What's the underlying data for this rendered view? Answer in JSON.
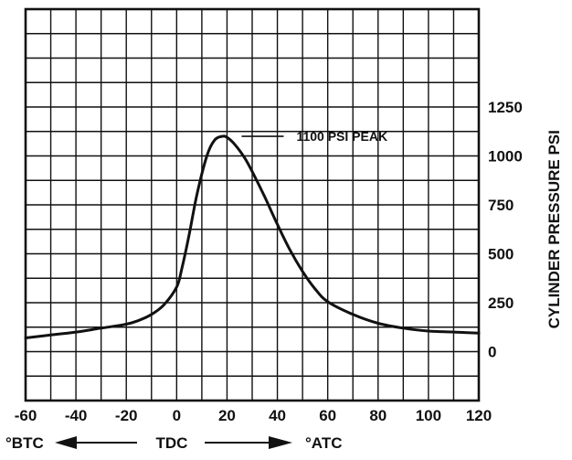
{
  "chart_data": {
    "type": "line",
    "title": "",
    "xlabel": "",
    "ylabel": "CYLINDER PRESSURE PSI",
    "x_ticks": [
      -60,
      -40,
      -20,
      0,
      20,
      40,
      60,
      80,
      100,
      120
    ],
    "x_tick_labels": [
      "-60",
      "-40",
      "-20",
      "0",
      "20",
      "40",
      "60",
      "80",
      "100",
      "120"
    ],
    "y_ticks": [
      0,
      250,
      500,
      750,
      1000,
      1250
    ],
    "y_tick_labels": [
      "0",
      "250",
      "500",
      "750",
      "1000",
      "1250"
    ],
    "xlim": [
      -60,
      120
    ],
    "ylim": [
      -250,
      1750
    ],
    "grid": true,
    "series": [
      {
        "x": [
          -60,
          -50,
          -40,
          -30,
          -20,
          -15,
          -10,
          -5,
          0,
          2,
          5,
          8,
          12,
          15,
          18,
          20,
          23,
          27,
          30,
          35,
          40,
          45,
          50,
          55,
          60,
          70,
          80,
          90,
          100,
          110,
          120
        ],
        "y": [
          70,
          85,
          100,
          120,
          140,
          160,
          190,
          240,
          330,
          420,
          600,
          800,
          1000,
          1080,
          1100,
          1095,
          1060,
          990,
          920,
          790,
          650,
          520,
          410,
          320,
          255,
          190,
          145,
          120,
          105,
          100,
          95
        ]
      }
    ],
    "annotations": [
      {
        "text": "1100 PSI PEAK",
        "x": 20,
        "y": 1100
      }
    ],
    "direction_labels": {
      "left": "°BTC",
      "center": "TDC",
      "right": "°ATC"
    }
  }
}
